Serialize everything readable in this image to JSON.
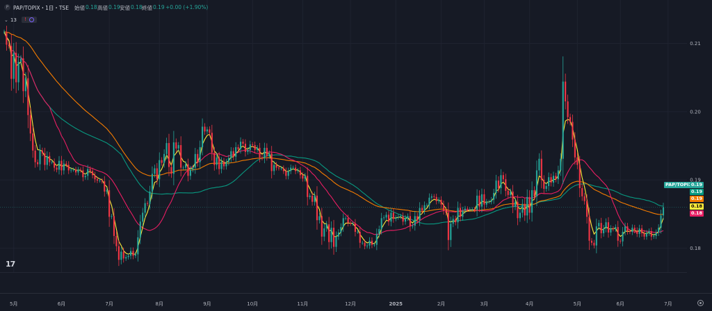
{
  "header": {
    "icon_letter": "P",
    "symbol": "PAP/TOPIX・1日・TSE",
    "open_label": "始値",
    "open_value": "0.18",
    "high_label": "高値",
    "high_value": "0.19",
    "low_label": "安値",
    "low_value": "0.18",
    "close_label": "終値",
    "close_value": "0.19",
    "change": "+0.00 (+1.90%)"
  },
  "indicators": {
    "chevron": "⌄",
    "count": "13",
    "warn_icon": "!"
  },
  "price_tags": [
    {
      "text": "PAP/TOPIX",
      "bg": "#26a69a",
      "fg": "#ffffff"
    },
    {
      "text": "0.19",
      "bg": "#26a69a",
      "fg": "#ffffff"
    },
    {
      "text": "0.19",
      "bg": "#089981",
      "fg": "#ffffff"
    },
    {
      "text": "0.19",
      "bg": "#f57c00",
      "fg": "#ffffff"
    },
    {
      "text": "0.18",
      "bg": "#ffeb3b",
      "fg": "#000000"
    },
    {
      "text": "0.18",
      "bg": "#e91e63",
      "fg": "#ffffff"
    }
  ],
  "colors": {
    "up": "#26a69a",
    "down": "#f23645",
    "ma_fast": "#ffeb3b",
    "ma_mid": "#e91e63",
    "ma_slow": "#089981",
    "ma_long": "#f57c00",
    "grid": "#1f2330",
    "text": "#b2b5be"
  },
  "chart_data": {
    "type": "candlestick",
    "title": "PAP/TOPIX・1日・TSE",
    "yticks": [
      "0.21",
      "0.20",
      "0.19",
      "0.18"
    ],
    "ylim": [
      0.1765,
      0.2133
    ],
    "xticks": [
      {
        "label": "5月",
        "i": 4
      },
      {
        "label": "6月",
        "i": 24
      },
      {
        "label": "7月",
        "i": 44
      },
      {
        "label": "8月",
        "i": 65
      },
      {
        "label": "9月",
        "i": 85
      },
      {
        "label": "10月",
        "i": 104
      },
      {
        "label": "11月",
        "i": 125
      },
      {
        "label": "12月",
        "i": 145
      },
      {
        "label": "2025",
        "i": 164
      },
      {
        "label": "2月",
        "i": 183
      },
      {
        "label": "3月",
        "i": 201
      },
      {
        "label": "4月",
        "i": 220
      },
      {
        "label": "5月",
        "i": 240
      },
      {
        "label": "6月",
        "i": 258
      },
      {
        "label": "7月",
        "i": 278
      }
    ],
    "close": [
      0.2117,
      0.2098,
      0.2096,
      0.2048,
      0.2086,
      0.2043,
      0.2073,
      0.2078,
      0.203,
      0.2049,
      0.1995,
      0.1968,
      0.1943,
      0.1926,
      0.1923,
      0.1943,
      0.1939,
      0.1922,
      0.1935,
      0.1926,
      0.1926,
      0.1918,
      0.1915,
      0.1928,
      0.1914,
      0.1924,
      0.1922,
      0.1914,
      0.1915,
      0.1915,
      0.1911,
      0.1915,
      0.1914,
      0.1904,
      0.1906,
      0.1916,
      0.1913,
      0.1907,
      0.1901,
      0.1899,
      0.1899,
      0.1898,
      0.1883,
      0.1885,
      0.1846,
      0.1847,
      0.1818,
      0.1803,
      0.1783,
      0.1795,
      0.1785,
      0.1787,
      0.1789,
      0.1796,
      0.1789,
      0.1791,
      0.1816,
      0.1839,
      0.1852,
      0.1866,
      0.1865,
      0.1883,
      0.1909,
      0.1917,
      0.1901,
      0.1929,
      0.1925,
      0.1938,
      0.1954,
      0.1919,
      0.1909,
      0.1955,
      0.1946,
      0.1951,
      0.1918,
      0.1918,
      0.1923,
      0.1906,
      0.1915,
      0.1918,
      0.1938,
      0.1926,
      0.1948,
      0.1978,
      0.1971,
      0.1974,
      0.1969,
      0.194,
      0.1922,
      0.1933,
      0.1916,
      0.1927,
      0.192,
      0.1926,
      0.1932,
      0.1942,
      0.1934,
      0.1948,
      0.1945,
      0.1956,
      0.1953,
      0.1941,
      0.1944,
      0.1952,
      0.1951,
      0.1944,
      0.1947,
      0.1933,
      0.1932,
      0.1947,
      0.1935,
      0.1939,
      0.1913,
      0.1922,
      0.1918,
      0.1917,
      0.1917,
      0.1913,
      0.1906,
      0.1913,
      0.1918,
      0.1918,
      0.1913,
      0.1914,
      0.1907,
      0.1902,
      0.1906,
      0.1875,
      0.1877,
      0.1868,
      0.1877,
      0.1841,
      0.1847,
      0.1817,
      0.1829,
      0.1835,
      0.1809,
      0.183,
      0.1802,
      0.1817,
      0.1823,
      0.1831,
      0.1844,
      0.1844,
      0.1837,
      0.1836,
      0.1836,
      0.1824,
      0.1824,
      0.1808,
      0.1808,
      0.1803,
      0.1804,
      0.1811,
      0.1805,
      0.1805,
      0.1821,
      0.1828,
      0.1844,
      0.1845,
      0.1849,
      0.1839,
      0.1852,
      0.1843,
      0.1845,
      0.1846,
      0.1847,
      0.1839,
      0.1844,
      0.1847,
      0.1832,
      0.1833,
      0.1847,
      0.1841,
      0.1859,
      0.1855,
      0.1863,
      0.1863,
      0.1874,
      0.1876,
      0.1875,
      0.1869,
      0.1871,
      0.1864,
      0.1855,
      0.1852,
      0.1812,
      0.1836,
      0.1843,
      0.1838,
      0.1859,
      0.1846,
      0.1855,
      0.1858,
      0.1857,
      0.1857,
      0.1857,
      0.1856,
      0.1877,
      0.1861,
      0.1879,
      0.1864,
      0.1868,
      0.1868,
      0.1871,
      0.1881,
      0.1899,
      0.1888,
      0.1907,
      0.1901,
      0.1884,
      0.1878,
      0.1883,
      0.1861,
      0.1868,
      0.1844,
      0.1852,
      0.1865,
      0.1848,
      0.1875,
      0.1852,
      0.1885,
      0.1876,
      0.1914,
      0.1931,
      0.19,
      0.1887,
      0.1891,
      0.1904,
      0.1896,
      0.1906,
      0.1901,
      0.1914,
      0.1931,
      0.2044,
      0.2015,
      0.1992,
      0.1985,
      0.1959,
      0.1933,
      0.1922,
      0.1888,
      0.1876,
      0.1869,
      0.1846,
      0.1811,
      0.1808,
      0.1804,
      0.1832,
      0.1837,
      0.1822,
      0.1829,
      0.1838,
      0.1823,
      0.1829,
      0.1828,
      0.1831,
      0.1811,
      0.181,
      0.1824,
      0.1832,
      0.1825,
      0.1824,
      0.183,
      0.1826,
      0.1821,
      0.1829,
      0.1822,
      0.1817,
      0.1822,
      0.1825,
      0.1817,
      0.1818,
      0.1823,
      0.183,
      0.1848,
      0.186
    ],
    "series": [
      {
        "name": "",
        "color": "#ffeb3b"
      },
      {
        "name": "",
        "color": "#e91e63"
      },
      {
        "name": "",
        "color": "#089981"
      },
      {
        "name": "",
        "color": "#f57c00"
      }
    ]
  }
}
